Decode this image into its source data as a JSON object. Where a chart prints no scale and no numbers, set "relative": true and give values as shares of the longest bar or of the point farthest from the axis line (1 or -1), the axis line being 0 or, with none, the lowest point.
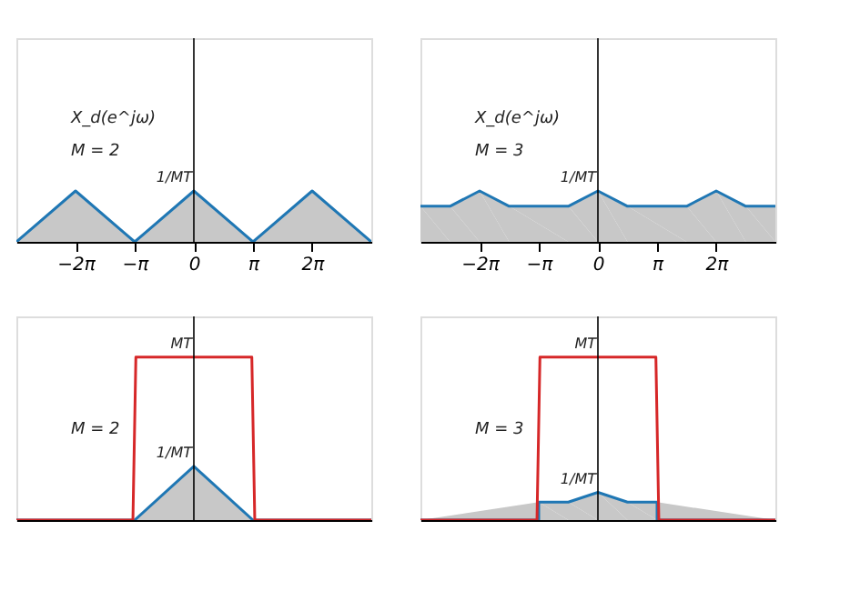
{
  "chart_data": [
    {
      "type": "area",
      "relative": true,
      "xlim": [
        -9.425,
        9.425
      ],
      "xticks": [
        {
          "value": -6.283,
          "label": "−2π"
        },
        {
          "value": -3.142,
          "label": "−π"
        },
        0,
        {
          "value": 3.142,
          "label": "π"
        },
        {
          "value": 6.283,
          "label": "2π"
        }
      ],
      "annotations": [
        "X_d(e^jω)",
        "M = 2",
        "1/MT"
      ],
      "series": [
        {
          "color": "#1f77b4",
          "x": [
            -9.425,
            -6.283,
            -3.142,
            0,
            3.142,
            6.283,
            9.425
          ],
          "values": [
            0,
            1,
            0,
            1,
            0,
            1,
            0
          ]
        }
      ]
    },
    {
      "type": "area",
      "relative": true,
      "xlim": [
        -9.425,
        9.425
      ],
      "xticks": [
        {
          "value": -6.283,
          "label": "−2π"
        },
        {
          "value": -3.142,
          "label": "−π"
        },
        0,
        {
          "value": 3.142,
          "label": "π"
        },
        {
          "value": 6.283,
          "label": "2π"
        }
      ],
      "annotations": [
        "X_d(e^jω)",
        "M = 3",
        "1/MT"
      ],
      "series": [
        {
          "color": "#1f77b4",
          "x": [
            -9.425,
            -7.854,
            -6.283,
            -4.712,
            -1.571,
            0,
            1.571,
            4.712,
            6.283,
            7.854,
            9.425
          ],
          "values": [
            0.7,
            0.7,
            1,
            0.7,
            0.7,
            1,
            0.7,
            0.7,
            1,
            0.7,
            0.7
          ]
        }
      ]
    },
    {
      "type": "area",
      "relative": true,
      "xlim": [
        -9.425,
        9.425
      ],
      "annotations": [
        "M = 2",
        "MT",
        "1/MT"
      ],
      "series": [
        {
          "color": "#1f77b4",
          "x": [
            -9.425,
            -3.142,
            0,
            3.142,
            9.425
          ],
          "values": [
            0,
            0,
            0.33,
            0,
            0
          ]
        },
        {
          "type": "line",
          "color": "#d62728",
          "x": [
            -9.425,
            -3.236,
            -3.079,
            3.079,
            3.236,
            9.425
          ],
          "values": [
            0,
            0,
            1,
            1,
            0,
            0
          ]
        }
      ]
    },
    {
      "type": "area",
      "relative": true,
      "xlim": [
        -9.425,
        9.425
      ],
      "annotations": [
        "M = 3",
        "MT",
        "1/MT"
      ],
      "series": [
        {
          "color": "#1f77b4",
          "x": [
            -9.425,
            -3.142,
            -3.142,
            -1.571,
            0,
            1.571,
            3.142,
            3.142,
            9.425
          ],
          "values": [
            0,
            0,
            0.11,
            0.11,
            0.17,
            0.11,
            0.11,
            0,
            0
          ]
        },
        {
          "type": "line",
          "color": "#d62728",
          "x": [
            -9.425,
            -3.236,
            -3.079,
            3.079,
            3.236,
            9.425
          ],
          "values": [
            0,
            0,
            1,
            1,
            0,
            0
          ]
        }
      ]
    }
  ]
}
